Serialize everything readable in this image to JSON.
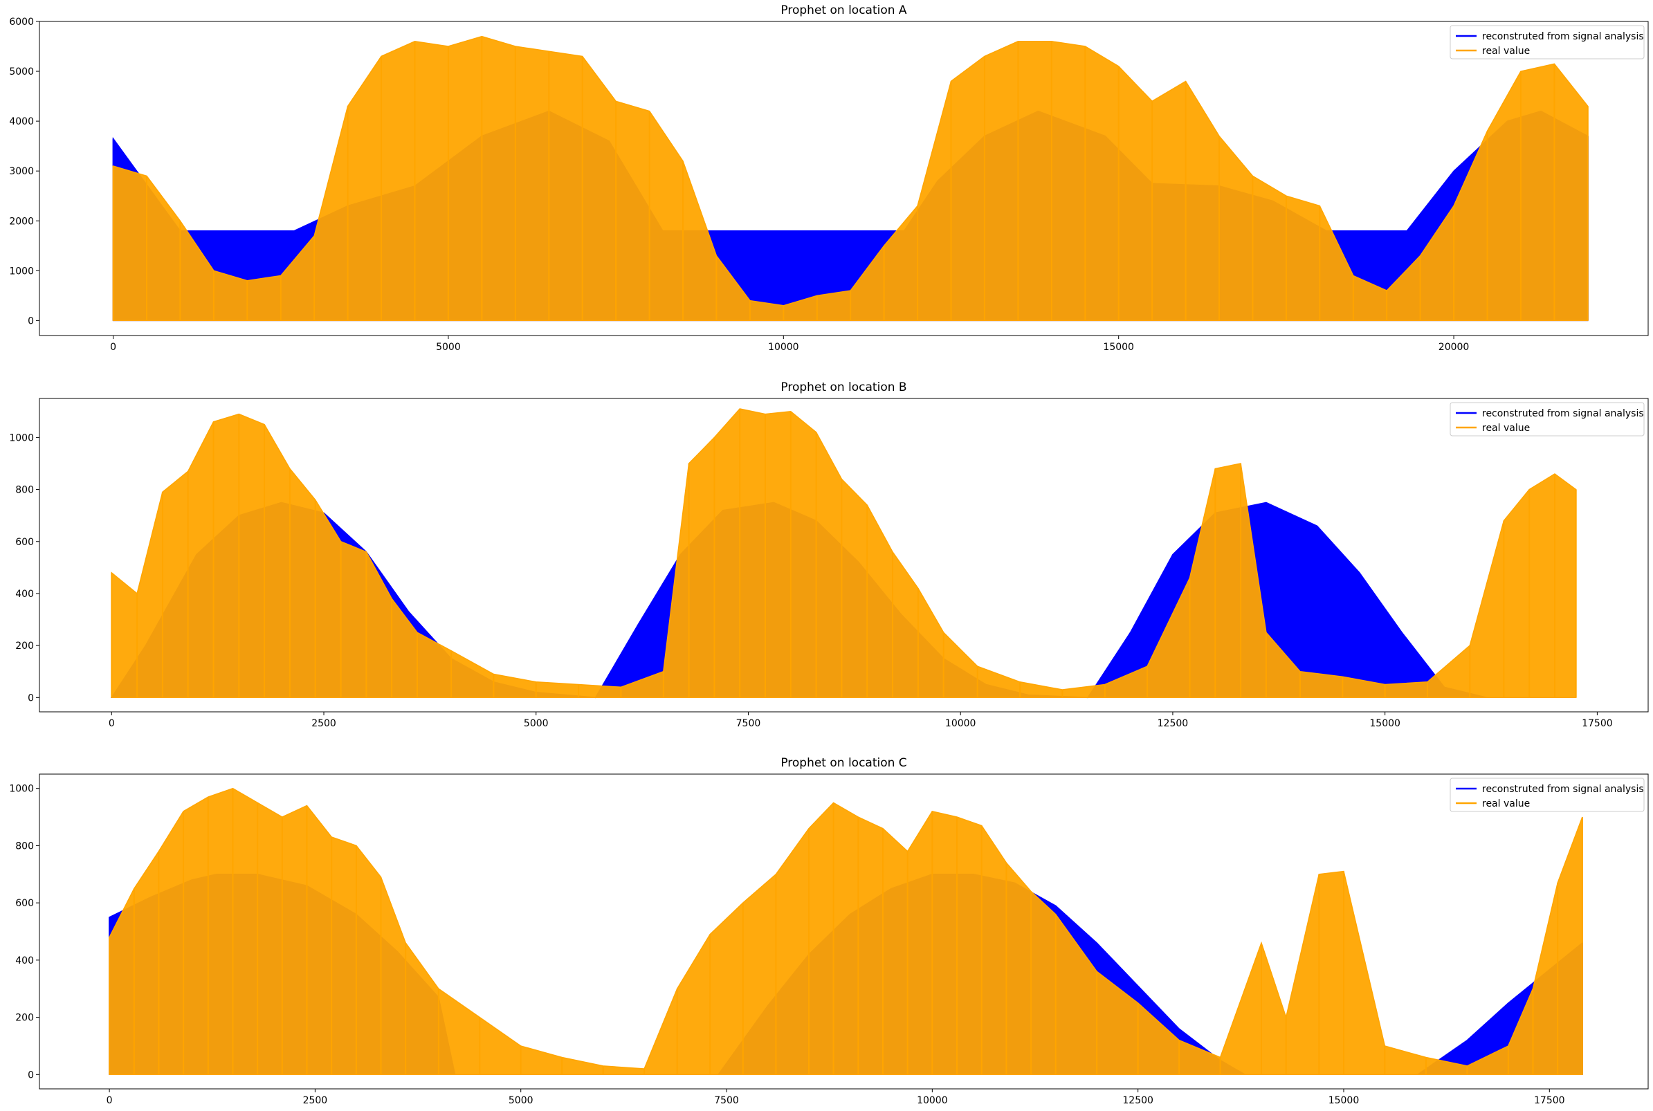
{
  "figure": {
    "legend_labels": [
      "reconstruted from signal analysis",
      "real value"
    ],
    "colors": {
      "reconstructed": "#0000ff",
      "real": "#ffa500"
    }
  },
  "chart_data": [
    {
      "type": "line",
      "title": "Prophet on location A",
      "xlabel": "",
      "ylabel": "",
      "xlim": [
        -1100,
        22900
      ],
      "ylim": [
        -300,
        6000
      ],
      "x_ticks": [
        0,
        5000,
        10000,
        15000,
        20000
      ],
      "x_tick_labels": [
        "0",
        "5000",
        "10000",
        "15000",
        "20000"
      ],
      "y_ticks": [
        0,
        1000,
        2000,
        3000,
        4000,
        5000,
        6000
      ],
      "y_tick_labels": [
        "0",
        "1000",
        "2000",
        "3000",
        "4000",
        "5000",
        "6000"
      ],
      "grid": false,
      "legend_placement": "upper right",
      "series": [
        {
          "name": "reconstruted from signal analysis",
          "color": "#0000ff",
          "x": [
            0,
            1000,
            2700,
            3500,
            4500,
            5500,
            6500,
            7400,
            8200,
            11800,
            12300,
            13000,
            13800,
            14800,
            15500,
            16500,
            17300,
            18100,
            19300,
            20000,
            20800,
            21300,
            22000
          ],
          "y": [
            3650,
            1800,
            1800,
            2300,
            2700,
            3700,
            4200,
            3600,
            1800,
            1800,
            2800,
            3700,
            4200,
            3700,
            2750,
            2700,
            2400,
            1800,
            1800,
            3000,
            4000,
            4200,
            3700
          ]
        },
        {
          "name": "real value",
          "color": "#ffa500",
          "x": [
            0,
            500,
            1000,
            1500,
            2000,
            2500,
            3000,
            3500,
            4000,
            4500,
            5000,
            5500,
            6000,
            6500,
            7000,
            7500,
            8000,
            8500,
            9000,
            9500,
            10000,
            10500,
            11000,
            11500,
            12000,
            12500,
            13000,
            13500,
            14000,
            14500,
            15000,
            15500,
            16000,
            16500,
            17000,
            17500,
            18000,
            18500,
            19000,
            19500,
            20000,
            20500,
            21000,
            21500,
            22000
          ],
          "y": [
            3100,
            2900,
            2000,
            1000,
            800,
            900,
            1700,
            4300,
            5300,
            5600,
            5500,
            5700,
            5500,
            5400,
            5300,
            4400,
            4200,
            3200,
            1300,
            400,
            300,
            500,
            600,
            1500,
            2300,
            4800,
            5300,
            5600,
            5600,
            5500,
            5100,
            4400,
            4800,
            3700,
            2900,
            2500,
            2300,
            900,
            600,
            1300,
            2300,
            3800,
            5000,
            5150,
            4300
          ]
        }
      ]
    },
    {
      "type": "line",
      "title": "Prophet on location B",
      "xlabel": "",
      "ylabel": "",
      "xlim": [
        -850,
        18100
      ],
      "ylim": [
        -55,
        1150
      ],
      "x_ticks": [
        0,
        2500,
        5000,
        7500,
        10000,
        12500,
        15000,
        17500
      ],
      "x_tick_labels": [
        "0",
        "2500",
        "5000",
        "7500",
        "10000",
        "12500",
        "15000",
        "17500"
      ],
      "y_ticks": [
        0,
        200,
        400,
        600,
        800,
        1000
      ],
      "y_tick_labels": [
        "0",
        "200",
        "400",
        "600",
        "800",
        "1000"
      ],
      "grid": false,
      "legend_placement": "upper right",
      "series": [
        {
          "name": "reconstruted from signal analysis",
          "color": "#0000ff",
          "x": [
            0,
            400,
            1000,
            1500,
            2000,
            2500,
            3000,
            3500,
            4000,
            4500,
            5000,
            5700,
            6200,
            6700,
            7200,
            7800,
            8300,
            8800,
            9300,
            9800,
            10300,
            10800,
            11500,
            12000,
            12500,
            13000,
            13600,
            14200,
            14700,
            15200,
            15700,
            16200,
            17250
          ],
          "y": [
            0,
            200,
            550,
            700,
            750,
            710,
            560,
            330,
            150,
            60,
            20,
            0,
            280,
            550,
            720,
            750,
            680,
            520,
            320,
            150,
            50,
            10,
            0,
            250,
            550,
            710,
            750,
            660,
            480,
            250,
            40,
            0,
            0
          ]
        },
        {
          "name": "real value",
          "color": "#ffa500",
          "x": [
            0,
            300,
            600,
            900,
            1200,
            1500,
            1800,
            2100,
            2400,
            2700,
            3000,
            3300,
            3600,
            4000,
            4500,
            5000,
            5500,
            6000,
            6500,
            6800,
            7100,
            7400,
            7700,
            8000,
            8300,
            8600,
            8900,
            9200,
            9500,
            9800,
            10200,
            10700,
            11200,
            11700,
            12200,
            12700,
            13000,
            13300,
            13600,
            14000,
            14500,
            15000,
            15500,
            16000,
            16400,
            16700,
            17000,
            17250
          ],
          "y": [
            480,
            400,
            790,
            870,
            1060,
            1090,
            1050,
            880,
            760,
            600,
            560,
            380,
            250,
            180,
            90,
            60,
            50,
            40,
            100,
            900,
            1000,
            1110,
            1090,
            1100,
            1020,
            840,
            740,
            560,
            420,
            250,
            120,
            60,
            30,
            50,
            120,
            460,
            880,
            900,
            250,
            100,
            80,
            50,
            60,
            200,
            680,
            800,
            860,
            800
          ]
        }
      ]
    },
    {
      "type": "line",
      "title": "Prophet on location C",
      "xlabel": "",
      "ylabel": "",
      "xlim": [
        -850,
        18700
      ],
      "ylim": [
        -50,
        1050
      ],
      "x_ticks": [
        0,
        2500,
        5000,
        7500,
        10000,
        12500,
        15000,
        17500
      ],
      "x_tick_labels": [
        "0",
        "2500",
        "5000",
        "7500",
        "10000",
        "12500",
        "15000",
        "17500"
      ],
      "y_ticks": [
        0,
        200,
        400,
        600,
        800,
        1000
      ],
      "y_tick_labels": [
        "0",
        "200",
        "400",
        "600",
        "800",
        "1000"
      ],
      "grid": false,
      "legend_placement": "upper right",
      "series": [
        {
          "name": "reconstruted from signal analysis",
          "color": "#0000ff",
          "x": [
            0,
            500,
            1000,
            1300,
            1800,
            2400,
            3000,
            3500,
            4000,
            4200,
            5000,
            6000,
            7000,
            7400,
            8000,
            8500,
            9000,
            9500,
            10000,
            10500,
            11000,
            11500,
            12000,
            12500,
            13000,
            13500,
            13800,
            15000,
            15900,
            16500,
            17000,
            17600,
            17900
          ],
          "y": [
            550,
            620,
            680,
            700,
            700,
            660,
            560,
            430,
            270,
            0,
            0,
            0,
            0,
            0,
            240,
            420,
            560,
            650,
            700,
            700,
            670,
            590,
            460,
            310,
            160,
            50,
            0,
            0,
            0,
            120,
            250,
            390,
            460
          ]
        },
        {
          "name": "real value",
          "color": "#ffa500",
          "x": [
            0,
            300,
            600,
            900,
            1200,
            1500,
            1800,
            2100,
            2400,
            2700,
            3000,
            3300,
            3600,
            4000,
            4500,
            5000,
            5500,
            6000,
            6500,
            6900,
            7300,
            7700,
            8100,
            8500,
            8800,
            9100,
            9400,
            9700,
            10000,
            10300,
            10600,
            10900,
            11200,
            11500,
            12000,
            12500,
            13000,
            13500,
            14000,
            14300,
            14700,
            15000,
            15500,
            16000,
            16500,
            17000,
            17300,
            17600,
            17900
          ],
          "y": [
            480,
            650,
            780,
            920,
            970,
            1000,
            950,
            900,
            940,
            830,
            800,
            690,
            460,
            300,
            200,
            100,
            60,
            30,
            20,
            300,
            490,
            600,
            700,
            860,
            950,
            900,
            860,
            780,
            920,
            900,
            870,
            740,
            640,
            560,
            360,
            250,
            120,
            60,
            460,
            200,
            700,
            710,
            100,
            60,
            30,
            100,
            300,
            670,
            900
          ]
        }
      ]
    }
  ]
}
